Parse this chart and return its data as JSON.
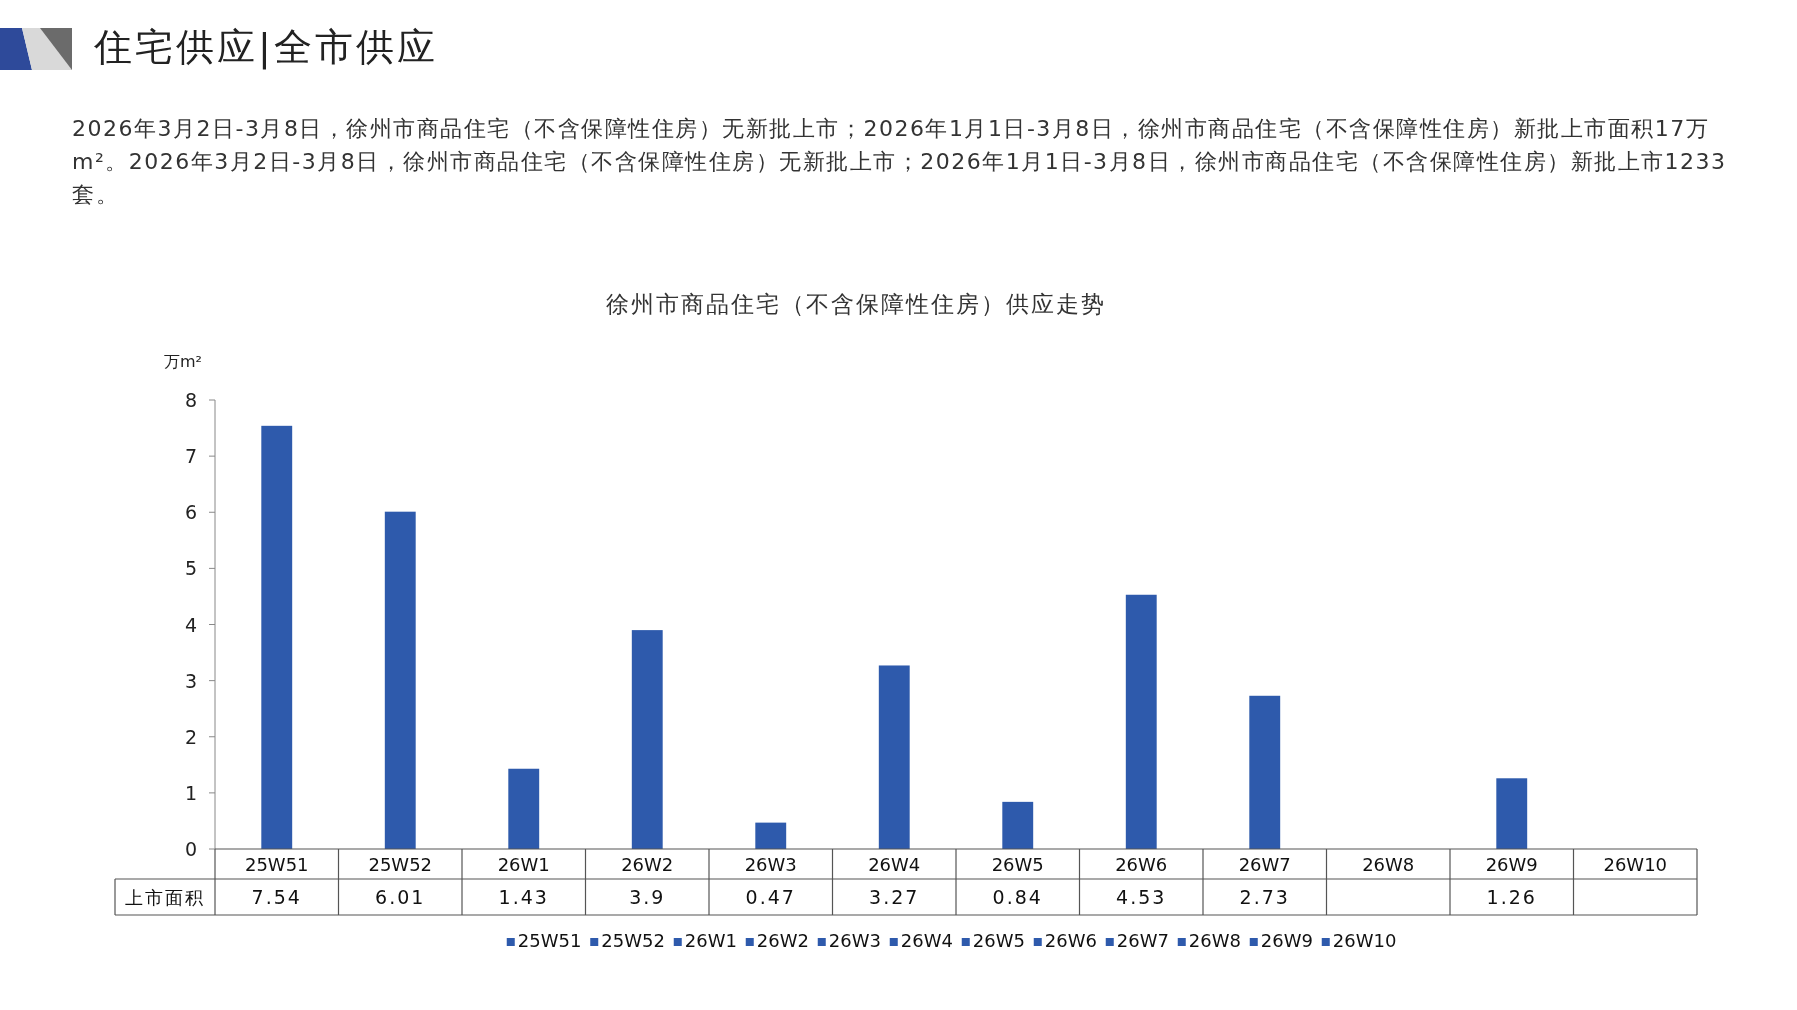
{
  "chart_data": {
    "type": "bar",
    "title": "徐州市商品住宅（不含保障性住房）供应走势",
    "ylabel": "万m²",
    "annotations": [
      "住宅供应|全市供应",
      "2026年3月2日-3月8日，徐州市商品住宅（不含保障性住房）无新批上市；2026年1月1日-3月8日，徐州市商品住宅（不含保障性住房）新批上市面积17万m²。2026年3月2日-3月8日，徐州市商品住宅（不含保障性住房）无新批上市；2026年1月1日-3月8日，徐州市商品住宅（不含保障性住房）新批上市1233套。"
    ],
    "categories": [
      "25W51",
      "25W52",
      "26W1",
      "26W2",
      "26W3",
      "26W4",
      "26W5",
      "26W6",
      "26W7",
      "26W8",
      "26W9",
      "26W10"
    ],
    "series": [
      {
        "name": "上市面积",
        "color": "#2e5aac",
        "values": [
          7.54,
          6.01,
          1.43,
          3.9,
          0.47,
          3.27,
          0.84,
          4.53,
          2.73,
          null,
          1.26,
          null
        ],
        "value_labels": [
          "7.54",
          "6.01",
          "1.43",
          "3.9",
          "0.47",
          "3.27",
          "0.84",
          "4.53",
          "2.73",
          null,
          "1.26",
          null
        ]
      }
    ],
    "ylim": [
      0,
      8
    ],
    "yticks": [
      0,
      1,
      2,
      3,
      4,
      5,
      6,
      7,
      8
    ],
    "legend": "bottom"
  }
}
